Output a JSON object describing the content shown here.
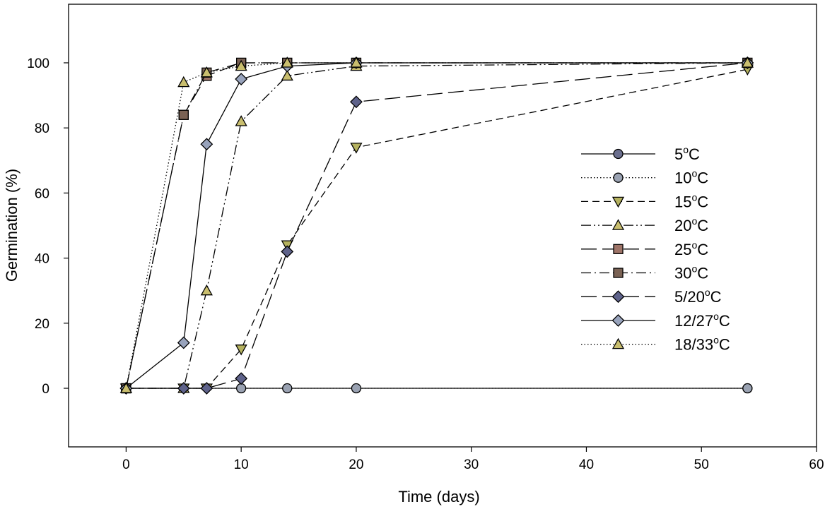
{
  "chart_data": {
    "type": "line",
    "title": "",
    "xlabel": "Time (days)",
    "ylabel": "Germination (%)",
    "xlim": [
      -5,
      60
    ],
    "ylim": [
      -18,
      118
    ],
    "xticks": [
      0,
      10,
      20,
      30,
      40,
      50,
      60
    ],
    "yticks": [
      0,
      20,
      40,
      60,
      80,
      100
    ],
    "grid": false,
    "legend_position": "right",
    "series": [
      {
        "name": "5",
        "label_prefix": "  5",
        "label_suffix": "C",
        "color": "#6b6f8e",
        "marker": "circle",
        "dash": "solid",
        "x": [
          0,
          54
        ],
        "y": [
          0,
          0
        ]
      },
      {
        "name": "10",
        "label_prefix": "10",
        "label_suffix": "C",
        "color": "#9aa2b2",
        "marker": "circle",
        "dash": "dotted",
        "x": [
          0,
          10,
          14,
          20,
          54
        ],
        "y": [
          0,
          0,
          0,
          0,
          0
        ]
      },
      {
        "name": "15",
        "label_prefix": "15",
        "label_suffix": "C",
        "color": "#b5b25f",
        "marker": "triangle-down",
        "dash": "dashed",
        "x": [
          0,
          5,
          7,
          10,
          14,
          20,
          54
        ],
        "y": [
          0,
          0,
          0,
          12,
          44,
          74,
          98
        ]
      },
      {
        "name": "20",
        "label_prefix": "20",
        "label_suffix": "C",
        "color": "#c9be6e",
        "marker": "triangle-up",
        "dash": "dashdotdot",
        "x": [
          0,
          5,
          7,
          10,
          14,
          20,
          54
        ],
        "y": [
          0,
          0,
          30,
          82,
          96,
          99,
          100
        ]
      },
      {
        "name": "25",
        "label_prefix": "25",
        "label_suffix": "C",
        "color": "#9e7468",
        "marker": "square",
        "dash": "longdash",
        "x": [
          0,
          5,
          7,
          10,
          14,
          20,
          54
        ],
        "y": [
          0,
          84,
          96,
          100,
          100,
          100,
          100
        ]
      },
      {
        "name": "30",
        "label_prefix": "30",
        "label_suffix": "C",
        "color": "#7a6254",
        "marker": "square",
        "dash": "dashdot",
        "x": [
          0,
          5,
          7,
          10,
          14,
          20,
          54
        ],
        "y": [
          0,
          84,
          97,
          100,
          100,
          100,
          100
        ]
      },
      {
        "name": "5/20",
        "label_prefix": "  5/20",
        "label_suffix": "C",
        "color": "#5e628a",
        "marker": "diamond",
        "dash": "longdash",
        "x": [
          0,
          5,
          7,
          10,
          14,
          20,
          54
        ],
        "y": [
          0,
          0,
          0,
          3,
          42,
          88,
          100
        ]
      },
      {
        "name": "12/27",
        "label_prefix": "12/27",
        "label_suffix": "C",
        "color": "#98a3bc",
        "marker": "diamond",
        "dash": "solid",
        "x": [
          0,
          5,
          7,
          10,
          14,
          20,
          54
        ],
        "y": [
          0,
          14,
          75,
          95,
          99,
          100,
          100
        ]
      },
      {
        "name": "18/33",
        "label_prefix": "18/33",
        "label_suffix": "C",
        "color": "#c9be6e",
        "marker": "triangle-up",
        "dash": "dotted",
        "x": [
          0,
          5,
          7,
          10,
          14,
          20,
          54
        ],
        "y": [
          0,
          94,
          97,
          99,
          100,
          100,
          100
        ]
      }
    ]
  }
}
